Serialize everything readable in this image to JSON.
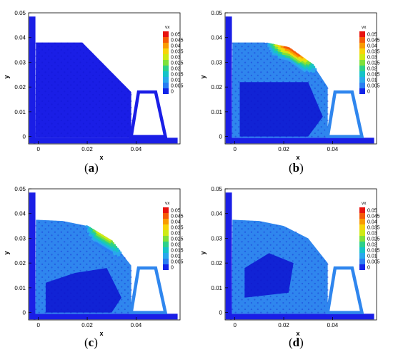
{
  "chart_data": [
    {
      "type": "scatter",
      "panel_label": "a",
      "xlabel": "x",
      "ylabel": "y",
      "xlim": [
        -0.004,
        0.058
      ],
      "ylim": [
        -0.003,
        0.05
      ],
      "x_ticks": [
        "0",
        "0.02",
        "0.04"
      ],
      "y_ticks": [
        "0",
        "0.01",
        "0.02",
        "0.03",
        "0.04",
        "0.05"
      ],
      "legend": {
        "title": "vx",
        "position": "right",
        "levels": [
          "0.05",
          "0.045",
          "0.04",
          "0.035",
          "0.03",
          "0.025",
          "0.02",
          "0.015",
          "0.01",
          "0.005",
          "0"
        ]
      },
      "state": "initial water column, vx = 0 everywhere",
      "free_surface": [
        [
          -0.001,
          0.038
        ],
        [
          0.018,
          0.038
        ],
        [
          0.038,
          0.018
        ]
      ],
      "obstacle": [
        [
          0.038,
          0.0
        ],
        [
          0.041,
          0.018
        ],
        [
          0.048,
          0.018
        ],
        [
          0.052,
          0.0
        ]
      ],
      "fast_band": null
    },
    {
      "type": "scatter",
      "panel_label": "b",
      "xlabel": "x",
      "ylabel": "y",
      "xlim": [
        -0.004,
        0.058
      ],
      "ylim": [
        -0.003,
        0.05
      ],
      "x_ticks": [
        "0",
        "0.02",
        "0.04"
      ],
      "y_ticks": [
        "0",
        "0.01",
        "0.02",
        "0.03",
        "0.04",
        "0.05"
      ],
      "legend": {
        "title": "vx",
        "position": "right",
        "levels": [
          "0.05",
          "0.045",
          "0.04",
          "0.035",
          "0.03",
          "0.025",
          "0.02",
          "0.015",
          "0.01",
          "0.005",
          "0"
        ]
      },
      "state": "collapsing front, peak vx about 0.05",
      "free_surface": [
        [
          -0.001,
          0.038
        ],
        [
          0.012,
          0.038
        ],
        [
          0.022,
          0.036
        ],
        [
          0.032,
          0.029
        ],
        [
          0.038,
          0.02
        ]
      ],
      "obstacle": [
        [
          0.038,
          0.0
        ],
        [
          0.041,
          0.018
        ],
        [
          0.048,
          0.018
        ],
        [
          0.052,
          0.0
        ]
      ],
      "fast_band": {
        "x_start": 0.012,
        "x_end": 0.038,
        "peak_vx": 0.05
      }
    },
    {
      "type": "scatter",
      "panel_label": "c",
      "xlabel": "x",
      "ylabel": "y",
      "xlim": [
        -0.004,
        0.058
      ],
      "ylim": [
        -0.003,
        0.05
      ],
      "x_ticks": [
        "0",
        "0.02",
        "0.04"
      ],
      "y_ticks": [
        "0",
        "0.01",
        "0.02",
        "0.03",
        "0.04",
        "0.05"
      ],
      "legend": {
        "title": "vx",
        "position": "right",
        "levels": [
          "0.05",
          "0.045",
          "0.04",
          "0.035",
          "0.03",
          "0.025",
          "0.02",
          "0.015",
          "0.01",
          "0.005",
          "0"
        ]
      },
      "state": "decelerating front, peak vx about 0.035",
      "free_surface": [
        [
          -0.001,
          0.0375
        ],
        [
          0.01,
          0.037
        ],
        [
          0.02,
          0.035
        ],
        [
          0.03,
          0.029
        ],
        [
          0.038,
          0.019
        ]
      ],
      "obstacle": [
        [
          0.038,
          0.0
        ],
        [
          0.041,
          0.018
        ],
        [
          0.048,
          0.018
        ],
        [
          0.052,
          0.0
        ]
      ],
      "fast_band": {
        "x_start": 0.018,
        "x_end": 0.038,
        "peak_vx": 0.035
      }
    },
    {
      "type": "scatter",
      "panel_label": "d",
      "xlabel": "x",
      "ylabel": "y",
      "xlim": [
        -0.004,
        0.058
      ],
      "ylim": [
        -0.003,
        0.05
      ],
      "x_ticks": [
        "0",
        "0.02",
        "0.04"
      ],
      "y_ticks": [
        "0",
        "0.01",
        "0.02",
        "0.03",
        "0.04",
        "0.05"
      ],
      "legend": {
        "title": "vx",
        "position": "right",
        "levels": [
          "0.05",
          "0.045",
          "0.04",
          "0.035",
          "0.03",
          "0.025",
          "0.02",
          "0.015",
          "0.01",
          "0.005",
          "0"
        ]
      },
      "state": "near rest, vx about 0.005 to 0.01",
      "free_surface": [
        [
          -0.001,
          0.0375
        ],
        [
          0.01,
          0.037
        ],
        [
          0.02,
          0.035
        ],
        [
          0.03,
          0.03
        ],
        [
          0.038,
          0.02
        ]
      ],
      "obstacle": [
        [
          0.038,
          0.0
        ],
        [
          0.041,
          0.018
        ],
        [
          0.048,
          0.018
        ],
        [
          0.052,
          0.0
        ]
      ],
      "fast_band": null
    }
  ],
  "legend_colors": [
    "#e8120e",
    "#f55a06",
    "#f99b02",
    "#f7d40a",
    "#cfea14",
    "#7fe03a",
    "#2dd08a",
    "#16c3c8",
    "#2aa8ec",
    "#2a7df2",
    "#1225e8"
  ],
  "colors": {
    "base_blue": "#1a1ee6",
    "light_blue": "#2f86ee",
    "dark_blue": "#0c12d0"
  }
}
